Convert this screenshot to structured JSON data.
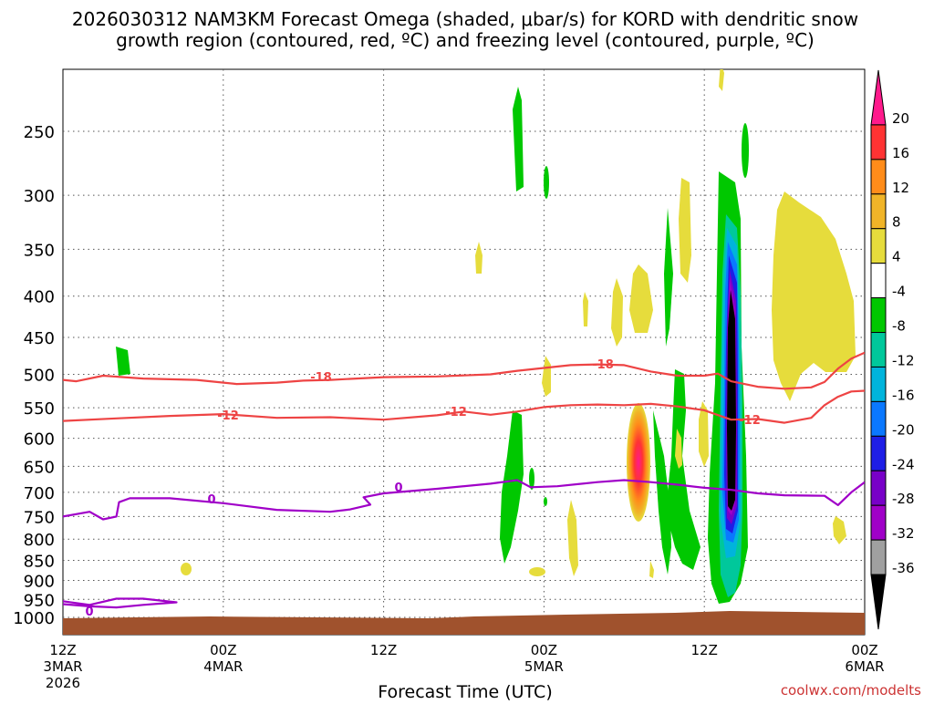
{
  "chart_data": {
    "type": "heatmap",
    "title_line1": "2026030312 NAM3KM Forecast Omega (shaded, μbar/s) for KORD with dendritic snow",
    "title_line2": "growth region (contoured, red, ºC) and freezing level (contoured, purple, ºC)",
    "xlabel": "Forecast Time (UTC)",
    "credit": "coolwx.com/modelts",
    "xlim_hours": [
      0,
      60
    ],
    "x_ticks": [
      {
        "hour": 0,
        "lines": [
          "12Z",
          "3MAR",
          "2026"
        ]
      },
      {
        "hour": 12,
        "lines": [
          "00Z",
          "4MAR"
        ]
      },
      {
        "hour": 24,
        "lines": [
          "12Z"
        ]
      },
      {
        "hour": 36,
        "lines": [
          "00Z",
          "5MAR"
        ]
      },
      {
        "hour": 48,
        "lines": [
          "12Z"
        ]
      },
      {
        "hour": 60,
        "lines": [
          "00Z",
          "6MAR"
        ]
      }
    ],
    "pressure_levels": [
      250,
      300,
      350,
      400,
      450,
      500,
      550,
      600,
      650,
      700,
      750,
      800,
      850,
      900,
      950,
      1000
    ],
    "colorbar": {
      "labels": [
        "20",
        "16",
        "12",
        "8",
        "4",
        "-4",
        "-8",
        "-12",
        "-16",
        "-20",
        "-24",
        "-28",
        "-32",
        "-36"
      ],
      "colors": [
        "#ff1a8c",
        "#ff3333",
        "#ff8c1a",
        "#f0b428",
        "#e6dc3c",
        "#ffffff",
        "#00c800",
        "#00c89b",
        "#00b4dc",
        "#0a78ff",
        "#1e1ee6",
        "#7800c8",
        "#a000c8",
        "#a0a0a0",
        "#000000"
      ]
    },
    "contour_labels": {
      "dgz_upper": "-18",
      "dgz_lower": "-12",
      "freezing": "0"
    },
    "series": [
      {
        "name": "-18",
        "color": "#ee4444",
        "points": [
          [
            0,
            508
          ],
          [
            1,
            510
          ],
          [
            3,
            502
          ],
          [
            6,
            506
          ],
          [
            10,
            508
          ],
          [
            13,
            514
          ],
          [
            16,
            512
          ],
          [
            18,
            509
          ],
          [
            20,
            508
          ],
          [
            24,
            504
          ],
          [
            28,
            503
          ],
          [
            32,
            500
          ],
          [
            34,
            495
          ],
          [
            36,
            491
          ],
          [
            38,
            487
          ],
          [
            40,
            486
          ],
          [
            42,
            487
          ],
          [
            44,
            496
          ],
          [
            46,
            502
          ],
          [
            48,
            502
          ],
          [
            49,
            499
          ],
          [
            50,
            510
          ],
          [
            52,
            518
          ],
          [
            54,
            521
          ],
          [
            56,
            519
          ],
          [
            57,
            511
          ],
          [
            58,
            492
          ],
          [
            59,
            478
          ],
          [
            60,
            470
          ]
        ]
      },
      {
        "name": "-12",
        "color": "#ee4444",
        "points": [
          [
            0,
            571
          ],
          [
            4,
            567
          ],
          [
            8,
            563
          ],
          [
            12,
            560
          ],
          [
            16,
            566
          ],
          [
            20,
            565
          ],
          [
            24,
            569
          ],
          [
            28,
            562
          ],
          [
            30,
            556
          ],
          [
            32,
            561
          ],
          [
            34,
            556
          ],
          [
            36,
            549
          ],
          [
            38,
            546
          ],
          [
            40,
            545
          ],
          [
            42,
            546
          ],
          [
            44,
            544
          ],
          [
            46,
            548
          ],
          [
            48,
            554
          ],
          [
            50,
            569
          ],
          [
            52,
            568
          ],
          [
            54,
            574
          ],
          [
            56,
            566
          ],
          [
            57,
            546
          ],
          [
            58,
            533
          ],
          [
            59,
            525
          ],
          [
            60,
            524
          ]
        ]
      },
      {
        "name": "0",
        "color": "#a000c8",
        "points": [
          [
            0,
            750
          ],
          [
            2,
            740
          ],
          [
            3,
            756
          ],
          [
            4,
            750
          ],
          [
            4.2,
            720
          ],
          [
            5,
            712
          ],
          [
            8,
            712
          ],
          [
            12,
            722
          ],
          [
            16,
            736
          ],
          [
            20,
            740
          ],
          [
            21.5,
            735
          ],
          [
            23,
            725
          ],
          [
            22.5,
            710
          ],
          [
            24,
            702
          ],
          [
            28,
            693
          ],
          [
            32,
            683
          ],
          [
            34,
            676
          ],
          [
            35,
            690
          ],
          [
            37,
            688
          ],
          [
            40,
            680
          ],
          [
            42,
            676
          ],
          [
            44,
            680
          ],
          [
            46,
            685
          ],
          [
            48,
            691
          ],
          [
            50,
            695
          ],
          [
            52,
            702
          ],
          [
            54,
            706
          ],
          [
            57,
            707
          ],
          [
            58,
            726
          ],
          [
            59,
            700
          ],
          [
            60,
            680
          ]
        ]
      },
      {
        "name": "0-surface",
        "color": "#a000c8",
        "points": [
          [
            0,
            955
          ],
          [
            2,
            965
          ],
          [
            4,
            948
          ],
          [
            6,
            948
          ],
          [
            8.5,
            958
          ],
          [
            6,
            965
          ],
          [
            4,
            972
          ],
          [
            2,
            969
          ],
          [
            0,
            963
          ]
        ]
      }
    ]
  }
}
